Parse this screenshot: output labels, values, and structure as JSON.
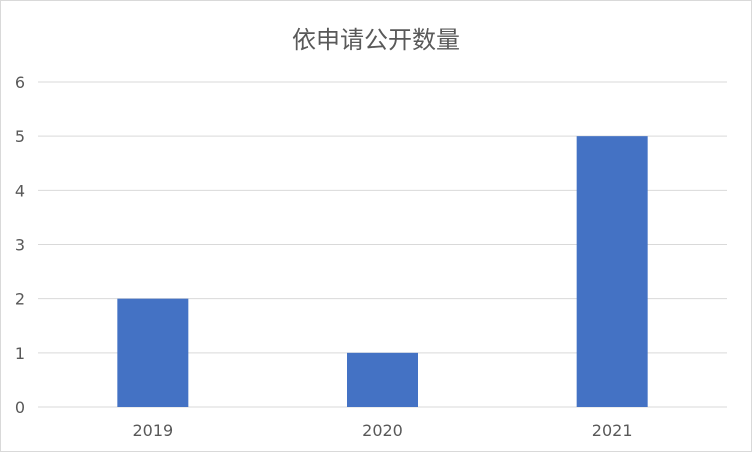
{
  "chart_data": {
    "type": "bar",
    "title": "依申请公开数量",
    "categories": [
      "2019",
      "2020",
      "2021"
    ],
    "values": [
      2,
      1,
      5
    ],
    "xlabel": "",
    "ylabel": "",
    "ylim": [
      0,
      6
    ],
    "yticks": [
      "0",
      "1",
      "2",
      "3",
      "4",
      "5",
      "6"
    ],
    "grid": true,
    "legend": "none",
    "colors": {
      "bar": "#4472C4",
      "grid": "#d9d9d9",
      "text": "#595959",
      "border": "#d9d9d9"
    }
  }
}
